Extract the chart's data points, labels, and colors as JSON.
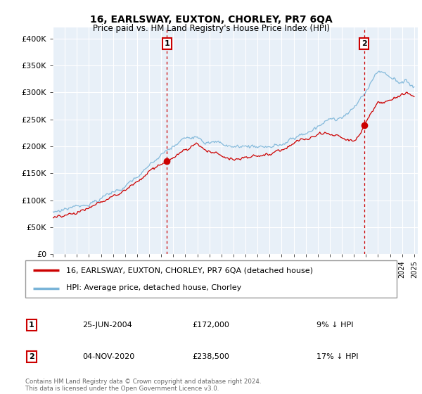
{
  "title": "16, EARLSWAY, EUXTON, CHORLEY, PR7 6QA",
  "subtitle": "Price paid vs. HM Land Registry's House Price Index (HPI)",
  "ylabel_ticks": [
    "£0",
    "£50K",
    "£100K",
    "£150K",
    "£200K",
    "£250K",
    "£300K",
    "£350K",
    "£400K"
  ],
  "y_values": [
    0,
    50000,
    100000,
    150000,
    200000,
    250000,
    300000,
    350000,
    400000
  ],
  "ylim": [
    0,
    420000
  ],
  "xlim_start": 1995.0,
  "xlim_end": 2025.3,
  "hpi_color": "#7ab4d8",
  "price_color": "#cc0000",
  "sale1_price": 172000,
  "sale1_label": "£172,000",
  "sale1_pct": "9% ↓ HPI",
  "sale1_year": 2004.48,
  "sale1_date": "25-JUN-2004",
  "sale2_price": 238500,
  "sale2_label": "£238,500",
  "sale2_pct": "17% ↓ HPI",
  "sale2_year": 2020.84,
  "sale2_date": "04-NOV-2020",
  "legend_line1": "16, EARLSWAY, EUXTON, CHORLEY, PR7 6QA (detached house)",
  "legend_line2": "HPI: Average price, detached house, Chorley",
  "footer": "Contains HM Land Registry data © Crown copyright and database right 2024.\nThis data is licensed under the Open Government Licence v3.0.",
  "background_color": "#ffffff",
  "chart_bg_color": "#e8f0f8",
  "grid_color": "#ffffff"
}
